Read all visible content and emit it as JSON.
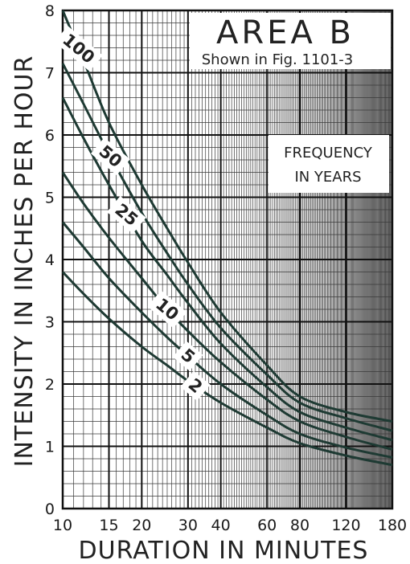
{
  "chart_data": {
    "type": "line",
    "title": "AREA B",
    "subtitle": "Shown in Fig. 1101-3",
    "legend_title": [
      "FREQUENCY",
      "IN YEARS"
    ],
    "xlabel": "DURATION IN MINUTES",
    "ylabel": "INTENSITY IN INCHES PER HOUR",
    "x_scale": "log",
    "xlim": [
      10,
      180
    ],
    "ylim": [
      0,
      8
    ],
    "grid": true,
    "x_ticks": [
      10,
      15,
      20,
      30,
      40,
      60,
      80,
      120,
      180
    ],
    "x_tick_labels": [
      "10",
      "15",
      "20",
      "30",
      "40",
      "60",
      "80",
      "120",
      "180"
    ],
    "y_ticks": [
      0,
      1,
      2,
      3,
      4,
      5,
      6,
      7,
      8
    ],
    "y_tick_labels": [
      "0",
      "1",
      "2",
      "3",
      "4",
      "5",
      "6",
      "7",
      "8"
    ],
    "series": [
      {
        "name": "100",
        "x": [
          10,
          12,
          15,
          20,
          25,
          30,
          40,
          60,
          80,
          120,
          180
        ],
        "values": [
          8.0,
          7.2,
          6.2,
          5.2,
          4.5,
          3.95,
          3.15,
          2.3,
          1.8,
          1.55,
          1.4
        ]
      },
      {
        "name": "50",
        "x": [
          10,
          12,
          15,
          20,
          25,
          30,
          40,
          60,
          80,
          120,
          180
        ],
        "values": [
          7.15,
          6.5,
          5.7,
          4.75,
          4.1,
          3.6,
          2.9,
          2.15,
          1.7,
          1.45,
          1.25
        ]
      },
      {
        "name": "25",
        "x": [
          10,
          12,
          15,
          20,
          25,
          30,
          40,
          60,
          80,
          120,
          180
        ],
        "values": [
          6.6,
          5.95,
          5.2,
          4.3,
          3.75,
          3.3,
          2.65,
          1.95,
          1.55,
          1.3,
          1.1
        ]
      },
      {
        "name": "10",
        "x": [
          10,
          12,
          15,
          20,
          25,
          30,
          40,
          60,
          80,
          120,
          180
        ],
        "values": [
          5.4,
          4.9,
          4.35,
          3.7,
          3.2,
          2.85,
          2.35,
          1.75,
          1.4,
          1.15,
          0.95
        ]
      },
      {
        "name": "5",
        "x": [
          10,
          12,
          15,
          20,
          25,
          30,
          40,
          60,
          80,
          120,
          180
        ],
        "values": [
          4.6,
          4.2,
          3.7,
          3.15,
          2.75,
          2.45,
          2.0,
          1.5,
          1.2,
          0.98,
          0.82
        ]
      },
      {
        "name": "2",
        "x": [
          10,
          12,
          15,
          20,
          25,
          30,
          40,
          60,
          80,
          120,
          180
        ],
        "values": [
          3.8,
          3.45,
          3.05,
          2.6,
          2.3,
          2.05,
          1.7,
          1.3,
          1.05,
          0.85,
          0.7
        ]
      }
    ]
  }
}
